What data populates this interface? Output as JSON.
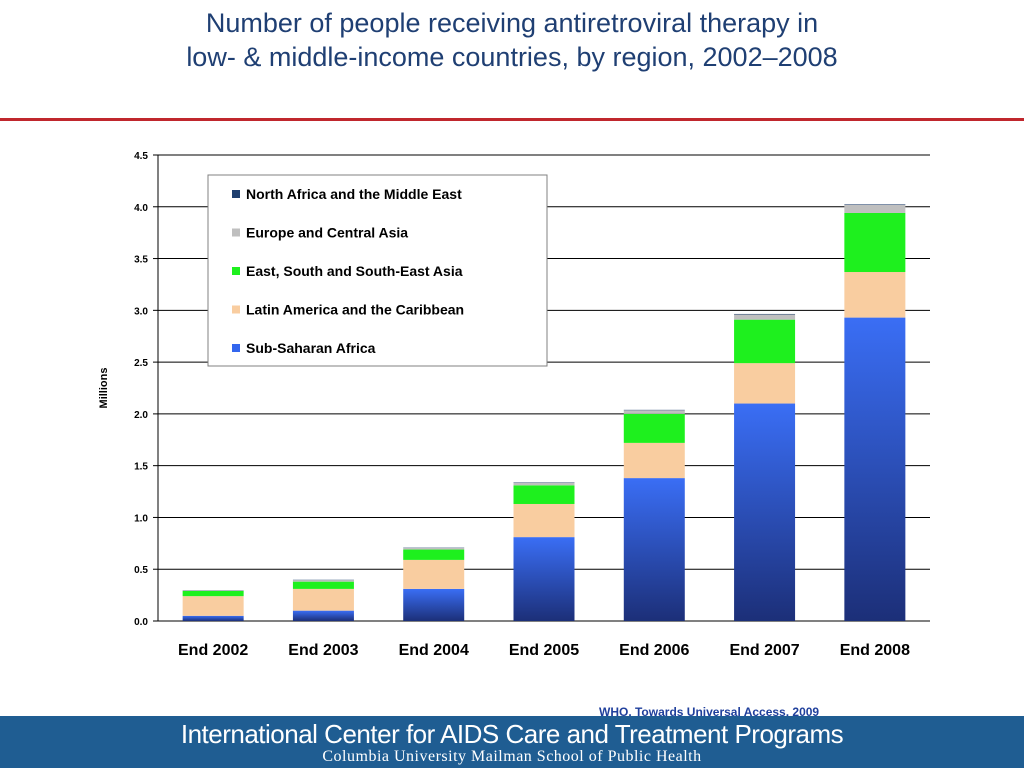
{
  "title": {
    "line1": "Number of people receiving antiretroviral therapy in",
    "line2": "low- & middle-income countries, by region, 2002–2008"
  },
  "source": "WHO. Towards Universal Access, 2009",
  "footer": {
    "line1": "International Center for AIDS Care and Treatment Programs",
    "line2": "Columbia University Mailman School of Public Health"
  },
  "colors": {
    "accent_rule": "#c0272d",
    "footer_bg": "#1f5d92"
  },
  "chart_data": {
    "type": "bar",
    "stacked": true,
    "ylabel": "Millions",
    "ylim": [
      0,
      4.5
    ],
    "yticks": [
      "0.0",
      "0.5",
      "1.0",
      "1.5",
      "2.0",
      "2.5",
      "3.0",
      "3.5",
      "4.0",
      "4.5"
    ],
    "grid": true,
    "legend_position": "top-left",
    "categories": [
      "End 2002",
      "End 2003",
      "End 2004",
      "End 2005",
      "End 2006",
      "End 2007",
      "End 2008"
    ],
    "series": [
      {
        "name": "Sub-Saharan Africa",
        "color": "#3366ee",
        "values": [
          0.05,
          0.1,
          0.31,
          0.81,
          1.38,
          2.1,
          2.93
        ]
      },
      {
        "name": "Latin America and the Caribbean",
        "color": "#f9cda0",
        "values": [
          0.19,
          0.21,
          0.28,
          0.32,
          0.34,
          0.39,
          0.44
        ]
      },
      {
        "name": "East, South and South-East Asia",
        "color": "#1ef01e",
        "values": [
          0.05,
          0.07,
          0.1,
          0.18,
          0.28,
          0.42,
          0.57
        ]
      },
      {
        "name": "Europe and Central Asia",
        "color": "#bfbfbf",
        "values": [
          0.005,
          0.015,
          0.015,
          0.025,
          0.035,
          0.05,
          0.08
        ]
      },
      {
        "name": "North Africa and the Middle East",
        "color": "#1f3f6f",
        "values": [
          0.002,
          0.003,
          0.003,
          0.004,
          0.004,
          0.005,
          0.005
        ]
      }
    ],
    "legend_order": [
      "North Africa and the Middle East",
      "Europe and Central Asia",
      "East, South and South-East Asia",
      "Latin America and the Caribbean",
      "Sub-Saharan Africa"
    ]
  }
}
